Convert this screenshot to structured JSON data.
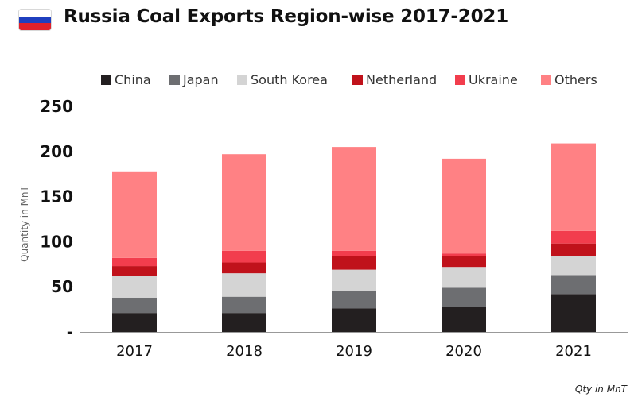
{
  "header": {
    "title": "Russia Coal Exports Region-wise 2017-2021",
    "flag_colors": [
      "#ffffff",
      "#1f3fbf",
      "#e0202a"
    ]
  },
  "footnote": "Qty in MnT",
  "chart_data": {
    "type": "bar",
    "stacked": true,
    "title": "Russia Coal Exports Region-wise 2017-2021",
    "xlabel": "",
    "ylabel": "Quantity in MnT",
    "ylim": [
      0,
      250
    ],
    "yticks": [
      0,
      50,
      100,
      150,
      200,
      250
    ],
    "ytick_labels": [
      "-",
      "50",
      "100",
      "150",
      "200",
      "250"
    ],
    "categories": [
      "2017",
      "2018",
      "2019",
      "2020",
      "2021"
    ],
    "legend_position": "top",
    "grid": false,
    "series": [
      {
        "name": "China",
        "color": "#231f20",
        "values": [
          21,
          21,
          26,
          28,
          42
        ]
      },
      {
        "name": "Japan",
        "color": "#6d6e71",
        "values": [
          17,
          18,
          19,
          21,
          21
        ]
      },
      {
        "name": "South Korea",
        "color": "#d4d4d4",
        "values": [
          24,
          26,
          24,
          23,
          21
        ]
      },
      {
        "name": "Netherland",
        "color": "#c0121b",
        "values": [
          11,
          12,
          15,
          12,
          14
        ]
      },
      {
        "name": "Ukraine",
        "color": "#f23d4d",
        "values": [
          9,
          13,
          6,
          3,
          14
        ]
      },
      {
        "name": "Others",
        "color": "#ff8184",
        "values": [
          96,
          107,
          115,
          105,
          97
        ]
      }
    ]
  }
}
